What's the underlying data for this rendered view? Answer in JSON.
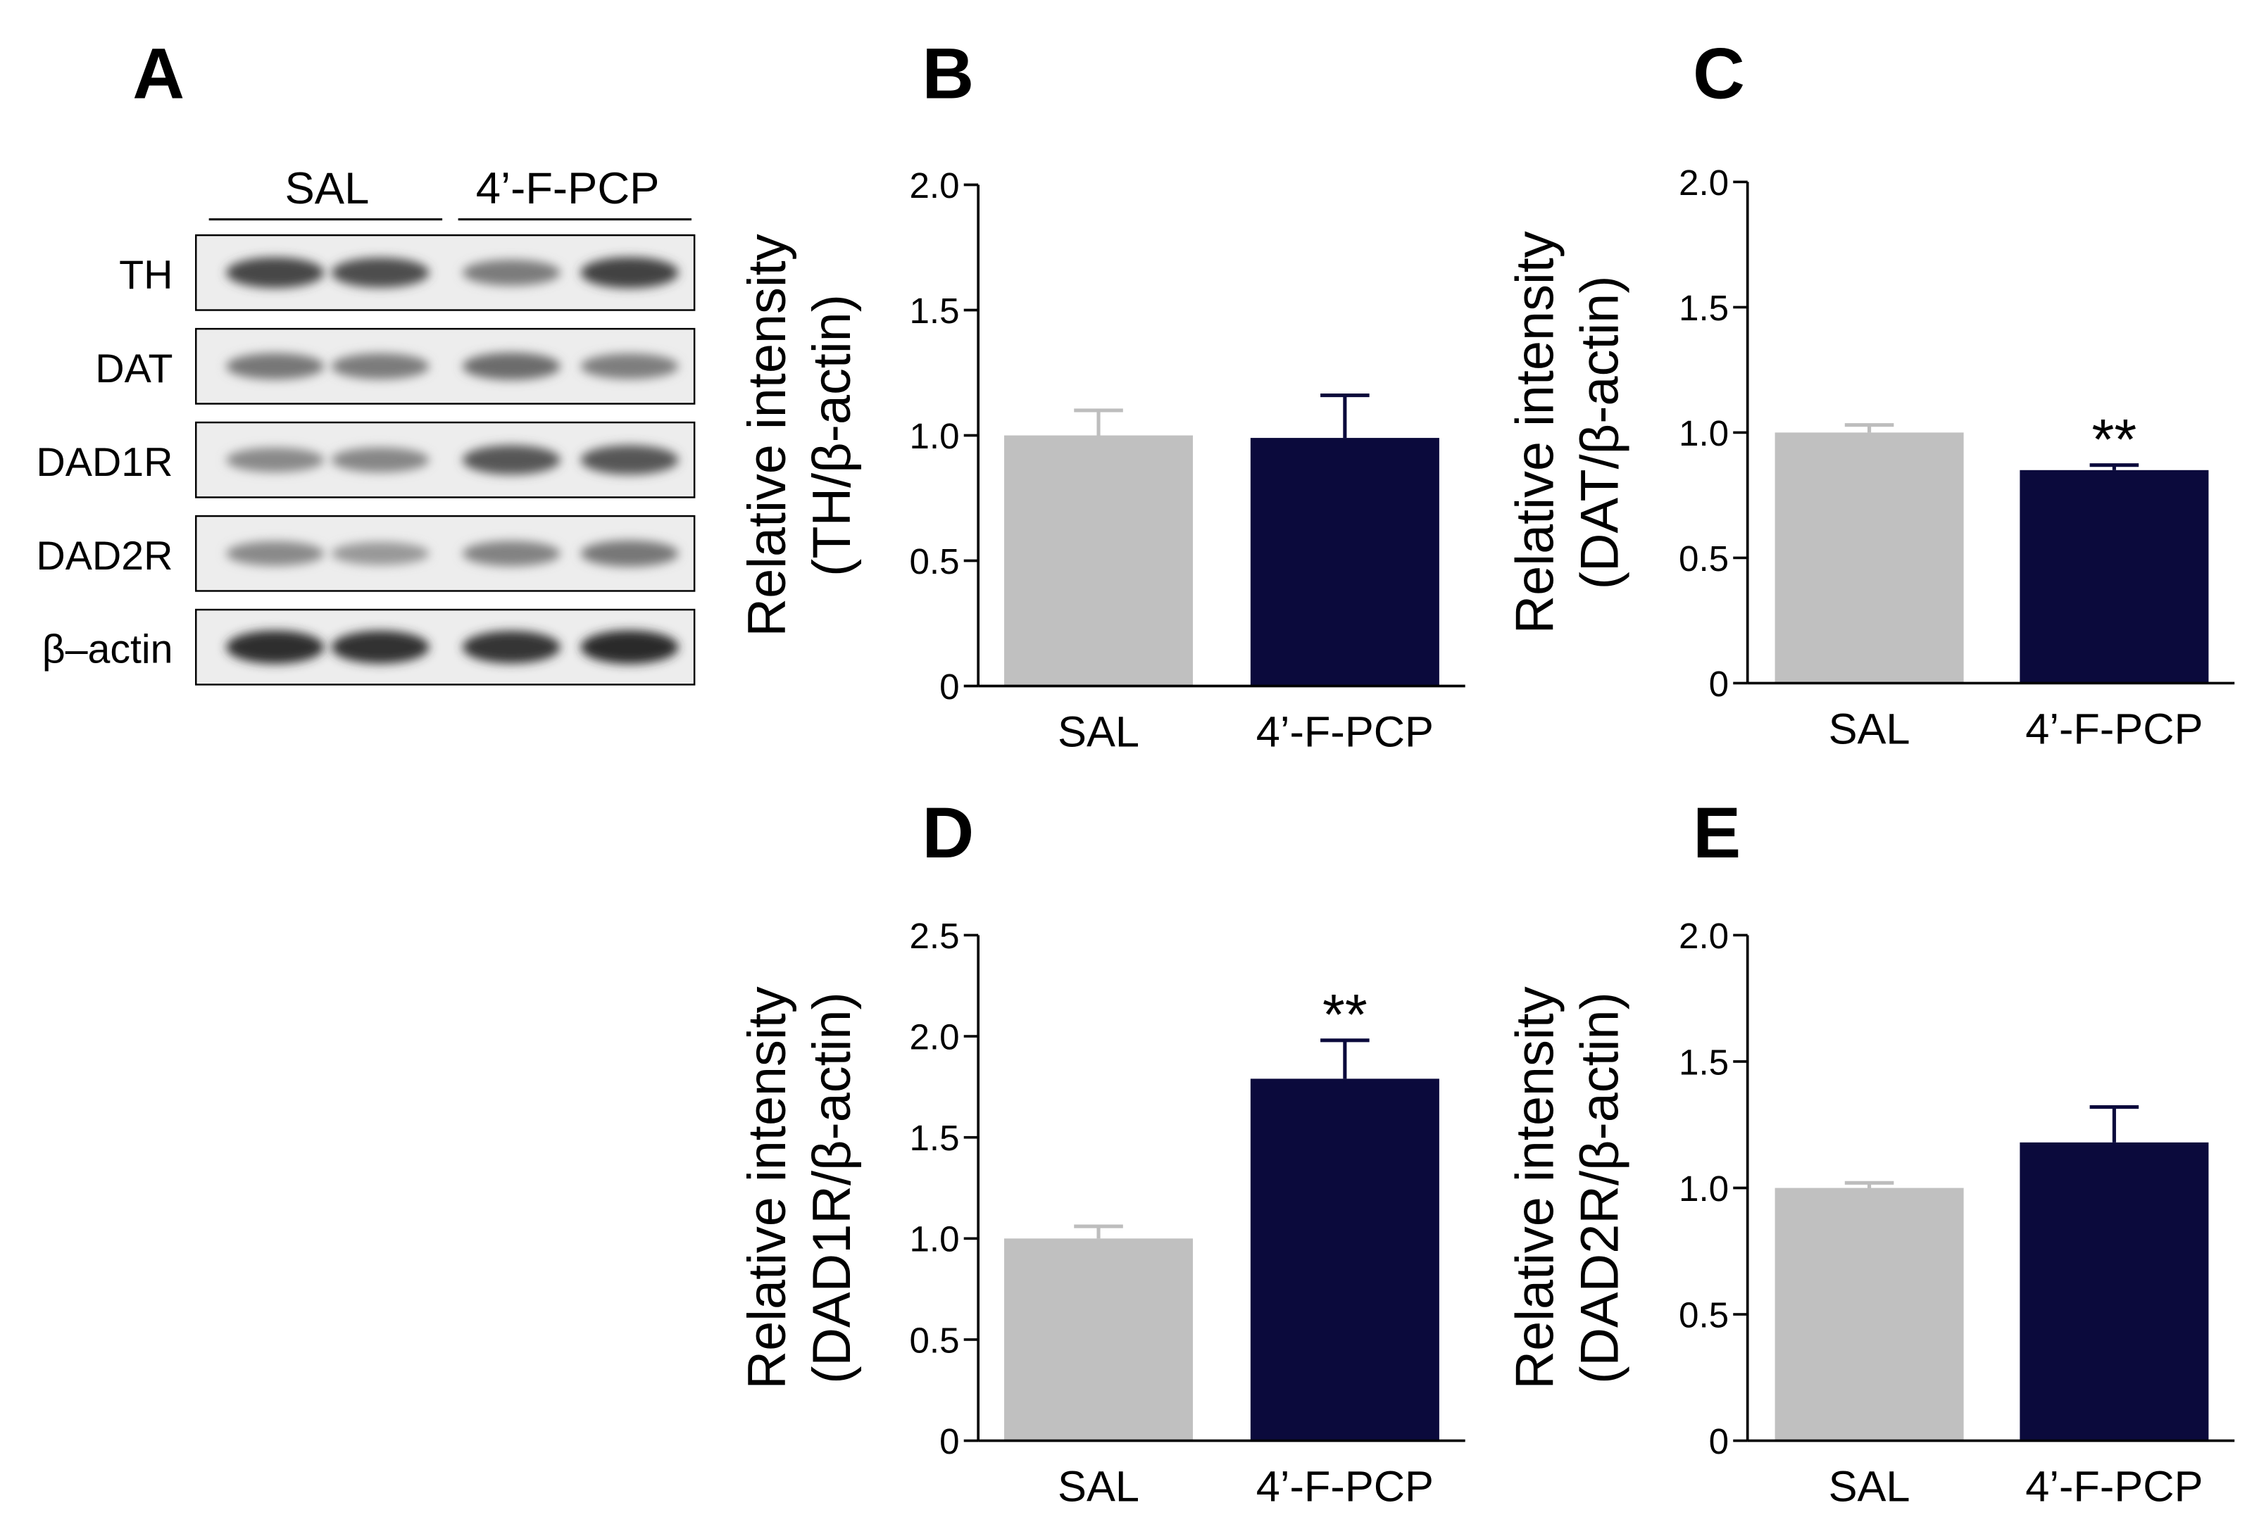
{
  "panel_labels": {
    "a": "A",
    "b": "B",
    "c": "C",
    "d": "D",
    "e": "E"
  },
  "blot": {
    "groups": [
      "SAL",
      "4’-F-PCP"
    ],
    "rows": [
      {
        "label": "TH",
        "intensity": [
          0.78,
          0.74,
          0.5,
          0.8
        ]
      },
      {
        "label": "DAT",
        "intensity": [
          0.52,
          0.5,
          0.58,
          0.48
        ]
      },
      {
        "label": "DAD1R",
        "intensity": [
          0.42,
          0.44,
          0.7,
          0.7
        ]
      },
      {
        "label": "DAD2R",
        "intensity": [
          0.42,
          0.34,
          0.46,
          0.52
        ]
      },
      {
        "label": "β–actin",
        "intensity": [
          0.92,
          0.9,
          0.88,
          0.94
        ]
      }
    ]
  },
  "colors": {
    "sal": "#c0c0c0",
    "treatment": "#0b0a3c",
    "axis": "#000000"
  },
  "chart_data": [
    {
      "id": "B",
      "type": "bar",
      "categories": [
        "SAL",
        "4’-F-PCP"
      ],
      "values": [
        1.0,
        0.99
      ],
      "errors": [
        0.1,
        0.17
      ],
      "annotations": [
        "",
        ""
      ],
      "ylabel_line1": "Relative intensity",
      "ylabel_line2": "(TH/β-actin)",
      "ylim": [
        0,
        2.0
      ],
      "yticks": [
        0,
        0.5,
        1.0,
        1.5,
        2.0
      ],
      "ytick_labels": [
        "0",
        "0.5",
        "1.0",
        "1.5",
        "2.0"
      ],
      "grid": false
    },
    {
      "id": "C",
      "type": "bar",
      "categories": [
        "SAL",
        "4’-F-PCP"
      ],
      "values": [
        1.0,
        0.85
      ],
      "errors": [
        0.03,
        0.02
      ],
      "annotations": [
        "",
        "**"
      ],
      "ylabel_line1": "Relative intensity",
      "ylabel_line2": "(DAT/β-actin)",
      "ylim": [
        0,
        2.0
      ],
      "yticks": [
        0,
        0.5,
        1.0,
        1.5,
        2.0
      ],
      "ytick_labels": [
        "0",
        "0.5",
        "1.0",
        "1.5",
        "2.0"
      ],
      "grid": false
    },
    {
      "id": "D",
      "type": "bar",
      "categories": [
        "SAL",
        "4’-F-PCP"
      ],
      "values": [
        1.0,
        1.79
      ],
      "errors": [
        0.06,
        0.19
      ],
      "annotations": [
        "",
        "**"
      ],
      "ylabel_line1": "Relative intensity",
      "ylabel_line2": "(DAD1R/β-actin)",
      "ylim": [
        0,
        2.5
      ],
      "yticks": [
        0,
        0.5,
        1.0,
        1.5,
        2.0,
        2.5
      ],
      "ytick_labels": [
        "0",
        "0.5",
        "1.0",
        "1.5",
        "2.0",
        "2.5"
      ],
      "grid": false
    },
    {
      "id": "E",
      "type": "bar",
      "categories": [
        "SAL",
        "4’-F-PCP"
      ],
      "values": [
        1.0,
        1.18
      ],
      "errors": [
        0.02,
        0.14
      ],
      "annotations": [
        "",
        ""
      ],
      "ylabel_line1": "Relative intensity",
      "ylabel_line2": "(DAD2R/β-actin)",
      "ylim": [
        0,
        2.0
      ],
      "yticks": [
        0,
        0.5,
        1.0,
        1.5,
        2.0
      ],
      "ytick_labels": [
        "0",
        "0.5",
        "1.0",
        "1.5",
        "2.0"
      ],
      "grid": false
    }
  ]
}
